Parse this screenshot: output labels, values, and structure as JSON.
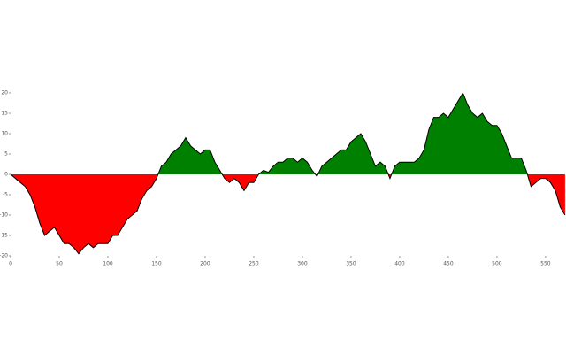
{
  "chart_data": {
    "type": "area",
    "x": [
      0,
      5,
      10,
      15,
      20,
      25,
      30,
      35,
      40,
      45,
      50,
      55,
      60,
      65,
      70,
      75,
      80,
      85,
      90,
      95,
      100,
      105,
      110,
      115,
      120,
      125,
      130,
      135,
      140,
      145,
      150,
      155,
      160,
      165,
      170,
      175,
      180,
      185,
      190,
      195,
      200,
      205,
      210,
      215,
      220,
      225,
      230,
      235,
      240,
      245,
      250,
      255,
      260,
      265,
      270,
      275,
      280,
      285,
      290,
      295,
      300,
      305,
      310,
      315,
      320,
      325,
      330,
      335,
      340,
      345,
      350,
      355,
      360,
      365,
      370,
      375,
      380,
      385,
      390,
      395,
      400,
      405,
      410,
      415,
      420,
      425,
      430,
      435,
      440,
      445,
      450,
      455,
      460,
      465,
      470,
      475,
      480,
      485,
      490,
      495,
      500,
      505,
      510,
      515,
      520,
      525,
      530,
      535,
      540,
      545,
      550,
      555,
      560,
      565,
      570
    ],
    "values": [
      0,
      -1,
      -2,
      -3,
      -5,
      -8,
      -12,
      -15,
      -14,
      -13,
      -15,
      -17,
      -17,
      -18,
      -19.5,
      -18,
      -17,
      -18,
      -17,
      -17,
      -17,
      -15,
      -15,
      -13,
      -11,
      -10,
      -9,
      -6,
      -4,
      -3,
      -1,
      2,
      3,
      5,
      6,
      7,
      9,
      7,
      6,
      5,
      6,
      6,
      3,
      1,
      -1,
      -2,
      -1,
      -2,
      -4,
      -2,
      -2,
      0,
      1,
      0.5,
      2,
      3,
      3,
      4,
      4,
      3,
      4,
      3,
      1,
      -0.5,
      2,
      3,
      4,
      5,
      6,
      6,
      8,
      9,
      10,
      8,
      5,
      2,
      3,
      2,
      -1,
      2,
      3,
      3,
      3,
      3,
      4,
      6,
      11,
      14,
      14,
      15,
      14,
      16,
      18,
      20,
      17,
      15,
      14,
      15,
      13,
      12,
      12,
      10,
      7,
      4,
      4,
      4,
      1,
      -3,
      -2,
      -1,
      -1,
      -2,
      -4,
      -8,
      -10
    ],
    "positive_color": "green",
    "negative_color": "red",
    "line_color": "#000",
    "xlim": [
      0,
      571
    ],
    "ylim": [
      -20,
      20
    ],
    "xticks": [
      0,
      50,
      100,
      150,
      200,
      250,
      300,
      350,
      400,
      450,
      500,
      550
    ],
    "yticks": [
      -20,
      -15,
      -10,
      -5,
      0,
      5,
      10,
      15,
      20
    ]
  }
}
